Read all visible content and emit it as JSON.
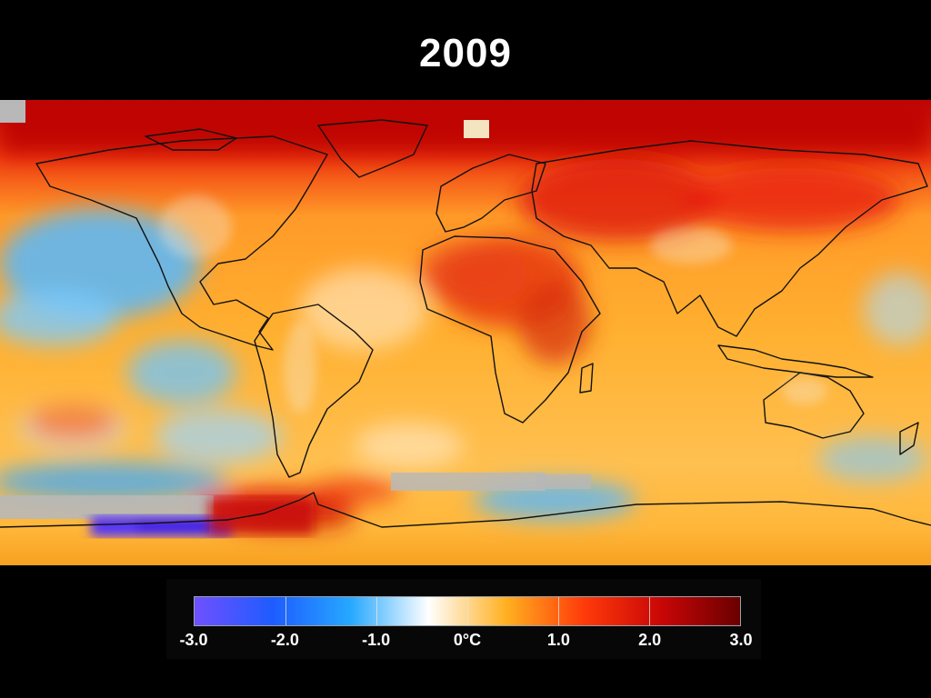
{
  "title": "2009",
  "legend": {
    "unit": "°C",
    "ticks": [
      {
        "value": -3.0,
        "label": "-3.0"
      },
      {
        "value": -2.0,
        "label": "-2.0"
      },
      {
        "value": -1.0,
        "label": "-1.0"
      },
      {
        "value": 0.0,
        "label": "0°C"
      },
      {
        "value": 1.0,
        "label": "1.0"
      },
      {
        "value": 2.0,
        "label": "2.0"
      },
      {
        "value": 3.0,
        "label": "3.0"
      }
    ],
    "range": [
      -3.0,
      3.0
    ],
    "colors": [
      "#7050ff",
      "#1e5cff",
      "#26a8ff",
      "#ffffff",
      "#ffb020",
      "#ff3a0a",
      "#c80606",
      "#6a0000"
    ]
  }
}
